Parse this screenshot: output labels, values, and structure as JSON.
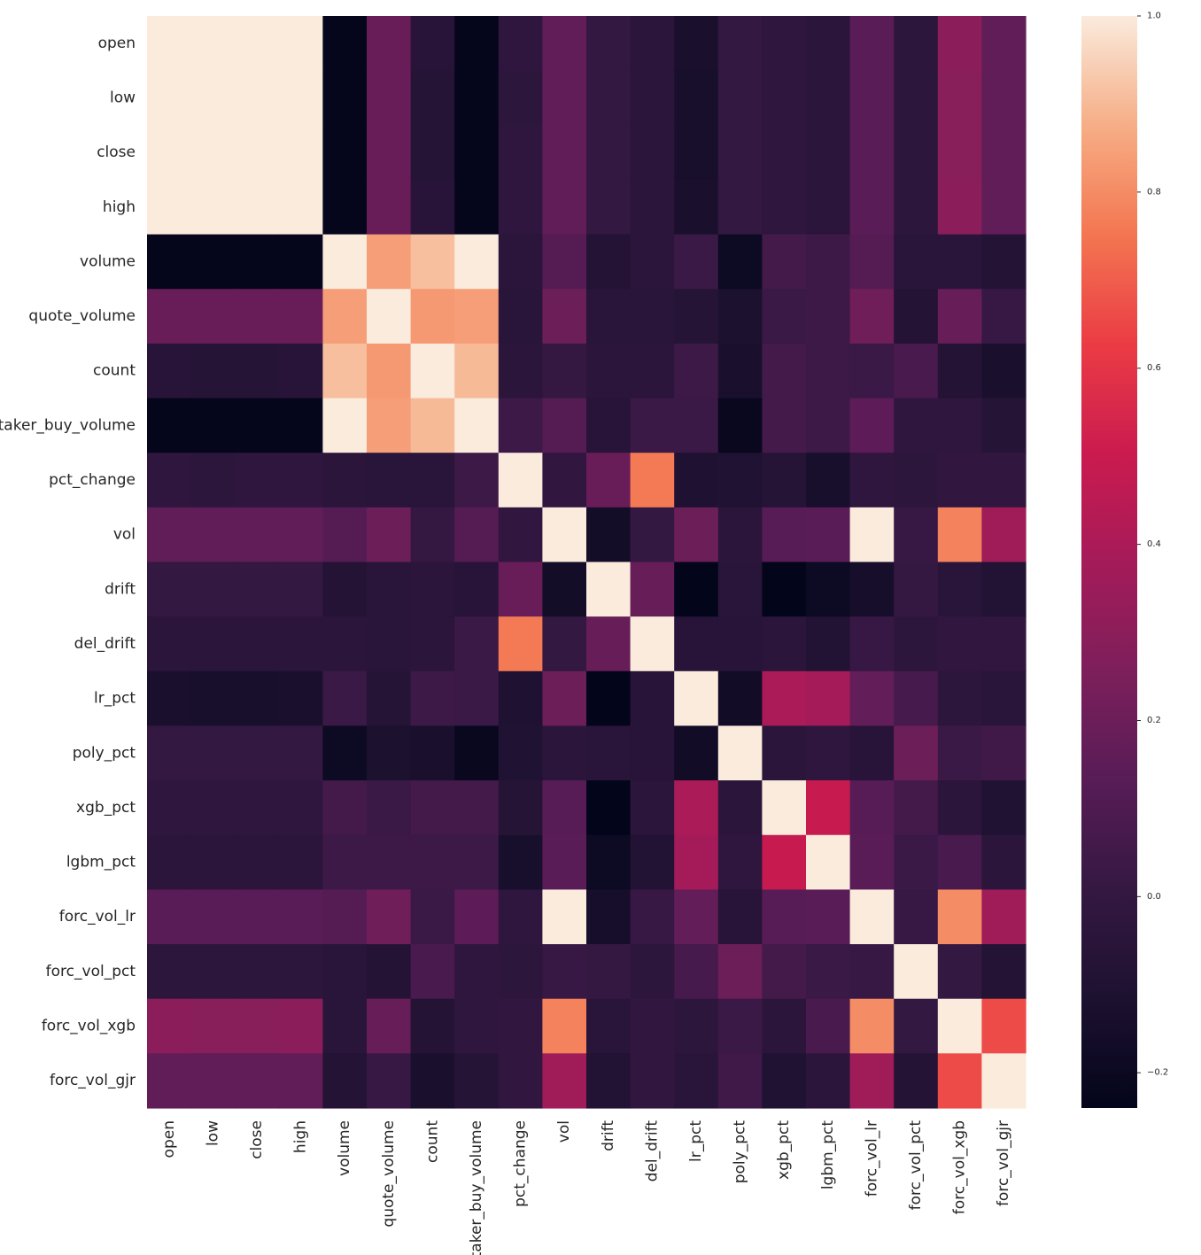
{
  "chart_data": {
    "type": "heatmap",
    "title": "",
    "xlabel": "",
    "ylabel": "",
    "labels": [
      "open",
      "low",
      "close",
      "high",
      "volume",
      "quote_volume",
      "count",
      "taker_buy_volume",
      "pct_change",
      "vol",
      "drift",
      "del_drift",
      "lr_pct",
      "poly_pct",
      "xgb_pct",
      "lgbm_pct",
      "forc_vol_lr",
      "forc_vol_pct",
      "forc_vol_xgb",
      "forc_vol_gjr"
    ],
    "values": [
      [
        1.0,
        1.0,
        1.0,
        1.0,
        -0.23,
        0.19,
        -0.06,
        -0.23,
        -0.02,
        0.16,
        0.0,
        -0.04,
        -0.13,
        0.0,
        -0.02,
        -0.04,
        0.14,
        -0.03,
        0.3,
        0.16
      ],
      [
        1.0,
        1.0,
        1.0,
        1.0,
        -0.23,
        0.19,
        -0.07,
        -0.23,
        -0.03,
        0.16,
        0.0,
        -0.04,
        -0.14,
        0.0,
        -0.02,
        -0.04,
        0.14,
        -0.03,
        0.29,
        0.16
      ],
      [
        1.0,
        1.0,
        1.0,
        1.0,
        -0.23,
        0.19,
        -0.07,
        -0.23,
        -0.02,
        0.16,
        0.0,
        -0.04,
        -0.14,
        0.0,
        -0.02,
        -0.04,
        0.14,
        -0.03,
        0.29,
        0.16
      ],
      [
        1.0,
        1.0,
        1.0,
        1.0,
        -0.23,
        0.19,
        -0.06,
        -0.23,
        -0.02,
        0.16,
        0.0,
        -0.04,
        -0.13,
        0.0,
        -0.02,
        -0.04,
        0.14,
        -0.03,
        0.3,
        0.16
      ],
      [
        -0.23,
        -0.23,
        -0.23,
        -0.23,
        1.0,
        0.84,
        0.91,
        1.0,
        -0.04,
        0.12,
        -0.08,
        -0.04,
        0.03,
        -0.19,
        0.06,
        0.04,
        0.12,
        -0.05,
        -0.05,
        -0.08
      ],
      [
        0.19,
        0.19,
        0.19,
        0.19,
        0.84,
        1.0,
        0.83,
        0.84,
        -0.05,
        0.2,
        -0.05,
        -0.05,
        -0.07,
        -0.12,
        0.03,
        0.04,
        0.21,
        -0.08,
        0.18,
        0.02
      ],
      [
        -0.06,
        -0.07,
        -0.07,
        -0.06,
        0.91,
        0.83,
        1.0,
        0.9,
        -0.04,
        0.01,
        -0.04,
        -0.04,
        0.04,
        -0.13,
        0.06,
        0.04,
        0.03,
        0.08,
        -0.08,
        -0.13
      ],
      [
        -0.23,
        -0.23,
        -0.23,
        -0.23,
        1.0,
        0.84,
        0.9,
        1.0,
        0.04,
        0.12,
        -0.06,
        0.03,
        0.03,
        -0.21,
        0.06,
        0.04,
        0.15,
        -0.02,
        -0.02,
        -0.07
      ],
      [
        -0.02,
        -0.03,
        -0.02,
        -0.02,
        -0.04,
        -0.05,
        -0.05,
        0.04,
        1.0,
        -0.01,
        0.19,
        0.76,
        -0.11,
        -0.1,
        -0.07,
        -0.14,
        -0.02,
        -0.03,
        -0.01,
        -0.01
      ],
      [
        0.16,
        0.16,
        0.16,
        0.16,
        0.12,
        0.2,
        0.01,
        0.12,
        -0.01,
        1.0,
        -0.16,
        0.0,
        0.2,
        -0.04,
        0.13,
        0.14,
        1.0,
        0.02,
        0.78,
        0.36
      ],
      [
        0.0,
        0.0,
        0.0,
        0.0,
        -0.08,
        -0.05,
        -0.04,
        -0.06,
        0.19,
        -0.16,
        1.0,
        0.18,
        -0.24,
        -0.05,
        -0.24,
        -0.19,
        -0.15,
        0.01,
        -0.05,
        -0.09
      ],
      [
        -0.04,
        -0.04,
        -0.04,
        -0.04,
        -0.04,
        -0.05,
        -0.04,
        0.03,
        0.76,
        0.0,
        0.18,
        1.0,
        -0.06,
        -0.06,
        -0.04,
        -0.09,
        0.02,
        -0.03,
        -0.01,
        -0.01
      ],
      [
        -0.13,
        -0.14,
        -0.14,
        -0.13,
        0.03,
        -0.07,
        0.04,
        0.03,
        -0.11,
        0.2,
        -0.24,
        -0.06,
        1.0,
        -0.17,
        0.4,
        0.38,
        0.17,
        0.07,
        -0.03,
        -0.05
      ],
      [
        0.0,
        0.0,
        0.0,
        0.0,
        -0.19,
        -0.12,
        -0.13,
        -0.21,
        -0.1,
        -0.04,
        -0.05,
        -0.06,
        -0.17,
        1.0,
        -0.04,
        -0.02,
        -0.06,
        0.2,
        0.03,
        0.05
      ],
      [
        -0.02,
        -0.02,
        -0.02,
        -0.02,
        0.06,
        0.03,
        0.06,
        0.06,
        -0.07,
        0.13,
        -0.24,
        -0.04,
        0.4,
        -0.04,
        1.0,
        0.49,
        0.13,
        0.06,
        -0.04,
        -0.1
      ],
      [
        -0.04,
        -0.04,
        -0.04,
        -0.04,
        0.04,
        0.04,
        0.04,
        0.04,
        -0.14,
        0.14,
        -0.19,
        -0.09,
        0.38,
        -0.02,
        0.49,
        1.0,
        0.14,
        0.03,
        0.08,
        -0.04
      ],
      [
        0.14,
        0.14,
        0.14,
        0.14,
        0.12,
        0.21,
        0.03,
        0.15,
        -0.02,
        1.0,
        -0.15,
        0.02,
        0.17,
        -0.06,
        0.13,
        0.14,
        1.0,
        0.02,
        0.8,
        0.36
      ],
      [
        -0.03,
        -0.03,
        -0.03,
        -0.03,
        -0.05,
        -0.08,
        0.08,
        -0.02,
        -0.03,
        0.02,
        0.01,
        -0.03,
        0.07,
        0.2,
        0.06,
        0.03,
        0.02,
        1.0,
        0.0,
        -0.08
      ],
      [
        0.3,
        0.29,
        0.29,
        0.3,
        -0.05,
        0.18,
        -0.08,
        -0.02,
        -0.01,
        0.78,
        -0.05,
        -0.01,
        -0.03,
        0.03,
        -0.04,
        0.08,
        0.8,
        0.0,
        1.0,
        0.66
      ],
      [
        0.16,
        0.16,
        0.16,
        0.16,
        -0.08,
        0.02,
        -0.13,
        -0.07,
        -0.01,
        0.36,
        -0.09,
        -0.01,
        -0.05,
        0.05,
        -0.1,
        -0.04,
        0.36,
        -0.08,
        0.66,
        1.0
      ]
    ],
    "colorbar": {
      "colormap": "rocket",
      "range": [
        -0.24,
        1.0
      ],
      "ticks": [
        -0.2,
        0.0,
        0.2,
        0.4,
        0.6,
        0.8,
        1.0
      ],
      "tick_labels": [
        "−0.2",
        "0.0",
        "0.2",
        "0.4",
        "0.6",
        "0.8",
        "1.0"
      ]
    },
    "grid": false
  }
}
